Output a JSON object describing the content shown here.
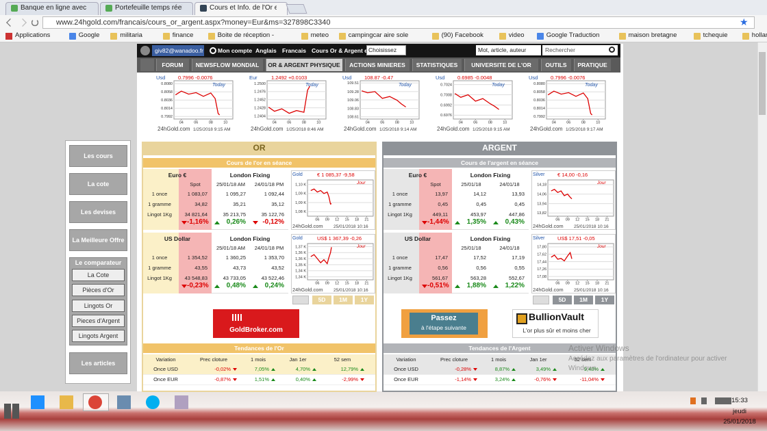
{
  "browser": {
    "tabs": [
      "Banque en ligne avec Fo",
      "Portefeuille temps réel -",
      "Cours et Info. de l'Or et l"
    ],
    "url": "www.24hgold.com/francais/cours_or_argent.aspx?money=Eur&ms=327898C3340",
    "bookmarks": [
      "Applications",
      "Google",
      "militaria",
      "finance",
      "Boite de réception -",
      "meteo",
      "campingcar aire sole",
      "(90) Facebook",
      "video",
      "Google Traduction",
      "maison bretagne",
      "tchequie",
      "hollande"
    ]
  },
  "site": {
    "user": "giv82@wanadoo.fr",
    "account": "Mon compte",
    "languages": [
      "Anglais",
      "Francais"
    ],
    "currency_label": "Cours Or & Argent en",
    "currency_select": "Choisissez",
    "search_placeholder": "Mot, article, auteur",
    "search_button": "Rechercher",
    "nav": [
      "FORUM",
      "NEWSFLOW MONDIAL",
      "OR & ARGENT PHYSIQUE",
      "ACTIONS MINIERES",
      "STATISTIQUES",
      "UNIVERSITE DE L'OR",
      "OUTILS",
      "PRATIQUE"
    ],
    "active_nav": 2
  },
  "mini_charts": [
    {
      "currency": "Usd",
      "quote": "0.7996 -0.0076",
      "today": "Today",
      "ylim": [
        0.7985,
        0.8088
      ],
      "yticks": [
        {
          "value": 0.808,
          "label": "0.8080"
        },
        {
          "value": 0.8058,
          "label": "0.8058"
        },
        {
          "value": 0.8036,
          "label": "0.8036"
        },
        {
          "value": 0.8014,
          "label": "0.8014"
        },
        {
          "value": 0.7992,
          "label": "0.7992"
        }
      ],
      "xlim": [
        3,
        11
      ],
      "xticks": [
        {
          "value": 4,
          "label": "04"
        },
        {
          "value": 6,
          "label": "06"
        },
        {
          "value": 8,
          "label": "08"
        },
        {
          "value": 10,
          "label": "10"
        }
      ],
      "x": [
        3.2,
        4,
        5,
        6,
        7,
        8,
        8.6,
        9,
        9.2
      ],
      "values": [
        0.805,
        0.806,
        0.8052,
        0.8056,
        0.8046,
        0.8055,
        0.804,
        0.8,
        0.7996
      ],
      "site": "24hGold.com",
      "time": "1/25/2018 9:15 AM"
    },
    {
      "currency": "Eur",
      "quote": "1.2492 +0.0103",
      "today": "Today",
      "ylim": [
        1.2395,
        1.2508
      ],
      "yticks": [
        {
          "value": 1.25,
          "label": "1.2500"
        },
        {
          "value": 1.2476,
          "label": "1.2476"
        },
        {
          "value": 1.2452,
          "label": "1.2452"
        },
        {
          "value": 1.2428,
          "label": "1.2428"
        },
        {
          "value": 1.2404,
          "label": "1.2404"
        }
      ],
      "xlim": [
        3,
        11
      ],
      "xticks": [
        {
          "value": 4,
          "label": "04"
        },
        {
          "value": 6,
          "label": "06"
        },
        {
          "value": 8,
          "label": "08"
        },
        {
          "value": 10,
          "label": "10"
        }
      ],
      "x": [
        3.2,
        4,
        5,
        6,
        7,
        8,
        8.5,
        8.8
      ],
      "values": [
        1.243,
        1.2418,
        1.2425,
        1.2412,
        1.242,
        1.2415,
        1.248,
        1.2492
      ],
      "site": "24hGold.com",
      "time": "1/25/2018 8:46 AM"
    },
    {
      "currency": "Usd",
      "quote": "108.87 -0.47",
      "today": "Today",
      "ylim": [
        108.55,
        109.57
      ],
      "yticks": [
        {
          "value": 109.51,
          "label": "109.51"
        },
        {
          "value": 109.28,
          "label": "109.28"
        },
        {
          "value": 109.06,
          "label": "109.06"
        },
        {
          "value": 108.83,
          "label": "108.83"
        },
        {
          "value": 108.61,
          "label": "108.61"
        }
      ],
      "xlim": [
        3,
        11
      ],
      "xticks": [
        {
          "value": 4,
          "label": "04"
        },
        {
          "value": 6,
          "label": "06"
        },
        {
          "value": 8,
          "label": "08"
        },
        {
          "value": 10,
          "label": "10"
        }
      ],
      "x": [
        3.2,
        4,
        5,
        6,
        7,
        8,
        8.6,
        9.2
      ],
      "values": [
        109.3,
        109.25,
        109.28,
        109.1,
        109.15,
        109.05,
        108.95,
        108.87
      ],
      "site": "24hGold.com",
      "time": "1/25/2018 9:14 AM"
    },
    {
      "currency": "Usd",
      "quote": "0.6985 -0.0048",
      "today": "Today",
      "ylim": [
        0.697,
        0.703
      ],
      "yticks": [
        {
          "value": 0.7024,
          "label": "0.7024"
        },
        {
          "value": 0.7008,
          "label": "0.7008"
        },
        {
          "value": 0.6992,
          "label": "0.6992"
        },
        {
          "value": 0.6976,
          "label": "0.6976"
        }
      ],
      "xlim": [
        3,
        11
      ],
      "xticks": [
        {
          "value": 4,
          "label": "04"
        },
        {
          "value": 6,
          "label": "06"
        },
        {
          "value": 8,
          "label": "08"
        },
        {
          "value": 10,
          "label": "10"
        }
      ],
      "x": [
        3.2,
        4,
        5,
        6,
        7,
        8,
        8.6,
        9.2
      ],
      "values": [
        0.701,
        0.7004,
        0.7008,
        0.6998,
        0.7002,
        0.6994,
        0.699,
        0.6985
      ],
      "site": "24hGold.com",
      "time": "1/25/2018 9:15 AM"
    },
    {
      "currency": "Usd",
      "quote": "0.7996 -0.0076",
      "today": "Today",
      "ylim": [
        0.7985,
        0.8088
      ],
      "yticks": [
        {
          "value": 0.808,
          "label": "0.8080"
        },
        {
          "value": 0.8058,
          "label": "0.8058"
        },
        {
          "value": 0.8036,
          "label": "0.8036"
        },
        {
          "value": 0.8014,
          "label": "0.8014"
        },
        {
          "value": 0.7992,
          "label": "0.7992"
        }
      ],
      "xlim": [
        3,
        11
      ],
      "xticks": [
        {
          "value": 4,
          "label": "04"
        },
        {
          "value": 6,
          "label": "06"
        },
        {
          "value": 8,
          "label": "08"
        },
        {
          "value": 10,
          "label": "10"
        }
      ],
      "x": [
        3.2,
        4,
        5,
        6,
        7,
        8,
        8.6,
        9,
        9.2
      ],
      "values": [
        0.805,
        0.806,
        0.8052,
        0.8056,
        0.8046,
        0.8055,
        0.804,
        0.8,
        0.7996
      ],
      "site": "24hGold.com",
      "time": "1/25/2018 9:17 AM"
    }
  ],
  "sidebar": {
    "buttons": [
      "Les cours",
      "La cote",
      "Les devises",
      "La Meilleure Offre"
    ],
    "comparator": {
      "title": "Le comparateur",
      "items": [
        "La Cote",
        "Pièces d'Or",
        "Lingots Or",
        "Pieces d'Argent",
        "Lingots Argent"
      ]
    },
    "articles": "Les articles"
  },
  "panels": [
    {
      "title": "OR",
      "subtitle": "Cours de l'or en séance",
      "blocks": [
        {
          "currency": "Euro €",
          "fixing": "London Fixing",
          "cols": [
            "Spot",
            "25/01/18 AM",
            "24/01/18 PM"
          ],
          "rows": [
            [
              "1 once",
              "1 083,07",
              "1 095,27",
              "1 092,44"
            ],
            [
              "1 gramme",
              "34,82",
              "35,21",
              "35,12"
            ],
            [
              "Lingot 1Kg",
              "34 821,64",
              "35 213,75",
              "35 122,76"
            ]
          ],
          "changes": [
            "-1,16%",
            "0,26%",
            "-0,12%"
          ],
          "chart": {
            "label": "Gold",
            "quote": "€ 1 085,37 -9,58",
            "period": "Jour",
            "ylim": [
              1077,
              1101
            ],
            "yticks": [
              {
                "value": 1098,
                "label": "1,10 K"
              },
              {
                "value": 1092,
                "label": "1,09 K"
              },
              {
                "value": 1086,
                "label": "1,09 K"
              },
              {
                "value": 1080,
                "label": "1,08 K"
              }
            ],
            "xlim": [
              3,
              23
            ],
            "xticks": [
              {
                "value": 6,
                "label": "06"
              },
              {
                "value": 9,
                "label": "09"
              },
              12,
              15,
              18,
              21
            ],
            "x": [
              4,
              5,
              6,
              7,
              8,
              9,
              9.5,
              10,
              10.3
            ],
            "values": [
              1094,
              1095,
              1093,
              1094,
              1092,
              1093,
              1090,
              1085,
              1085.37
            ],
            "site": "24hGold.com",
            "time": "25/01/2018 10:16"
          }
        },
        {
          "currency": "US Dollar",
          "fixing": "London Fixing",
          "cols": [
            null,
            "25/01/18 AM",
            "24/01/18 PM"
          ],
          "rows": [
            [
              "1 once",
              "1 354,52",
              "1 360,25",
              "1 353,70"
            ],
            [
              "1 gramme",
              "43,55",
              "43,73",
              "43,52"
            ],
            [
              "Lingot 1Kg",
              "43 548,83",
              "43 733,05",
              "43 522,46"
            ]
          ],
          "changes": [
            "-0,23%",
            "0,48%",
            "0,24%"
          ],
          "chart": {
            "label": "Gold",
            "quote": "US$ 1 367,39 -0,26",
            "period": "Jour",
            "ylim": [
              1335,
              1371
            ],
            "yticks": [
              {
                "value": 1368,
                "label": "1,37 K"
              },
              {
                "value": 1362,
                "label": "1,36 K"
              },
              {
                "value": 1356,
                "label": "1,36 K"
              },
              {
                "value": 1350,
                "label": "1,35 K"
              },
              {
                "value": 1344,
                "label": "1,34 K"
              },
              {
                "value": 1338,
                "label": "1,34 K"
              }
            ],
            "xlim": [
              3,
              23
            ],
            "xticks": [
              {
                "value": 6,
                "label": "06"
              },
              {
                "value": 9,
                "label": "09"
              },
              12,
              15,
              18,
              21
            ],
            "x": [
              4,
              5,
              6,
              7,
              8,
              9,
              9.5,
              10,
              10.3
            ],
            "values": [
              1358,
              1360,
              1356,
              1352,
              1355,
              1351,
              1357,
              1362,
              1367.39
            ],
            "site": "24hGold.com",
            "time": "25/01/2018 10:16"
          }
        }
      ],
      "periods": [
        "5D",
        "1M",
        "1Y"
      ],
      "trends": {
        "title": "Tendances de l'Or",
        "headers": [
          "Variation",
          "Prec cloture",
          "1 mois",
          "Jan 1er",
          "52 sem"
        ],
        "rows": [
          [
            "Once USD",
            "-0,02%",
            "7,05%",
            "4,70%",
            "12,79%"
          ],
          [
            "Once EUR",
            "-0,87%",
            "1,51%",
            "0,40%",
            "-2,99%"
          ]
        ]
      }
    },
    {
      "title": "ARGENT",
      "subtitle": "Cours de l'argent en séance",
      "blocks": [
        {
          "currency": "Euro €",
          "fixing": "London Fixing",
          "cols": [
            "Spot",
            "25/01/18",
            "24/01/18"
          ],
          "rows": [
            [
              "1 once",
              "13,97",
              "14,12",
              "13,93"
            ],
            [
              "1 gramme",
              "0,45",
              "0,45",
              "0,45"
            ],
            [
              "Lingot 1Kg",
              "449,11",
              "453,97",
              "447,86"
            ]
          ],
          "changes": [
            "-1,44%",
            "1,35%",
            "0,43%"
          ],
          "chart": {
            "label": "Silver",
            "quote": "€ 14,00 -0,16",
            "period": "Jour",
            "ylim": [
              13.78,
              14.24
            ],
            "yticks": [
              {
                "value": 14.18,
                "label": "14,18"
              },
              {
                "value": 14.06,
                "label": "14,06"
              },
              {
                "value": 13.94,
                "label": "13,94"
              },
              {
                "value": 13.82,
                "label": "13,82"
              }
            ],
            "xlim": [
              3,
              23
            ],
            "xticks": [
              {
                "value": 6,
                "label": "06"
              },
              {
                "value": 9,
                "label": "09"
              },
              12,
              15,
              18,
              21
            ],
            "x": [
              4,
              5,
              6,
              7,
              8,
              9,
              9.8,
              10.3
            ],
            "values": [
              14.1,
              14.12,
              14.08,
              14.1,
              14.04,
              14.06,
              14.02,
              14.0
            ],
            "site": "24hGold.com",
            "time": "25/01/2018 10:16"
          }
        },
        {
          "currency": "US Dollar",
          "fixing": "London Fixing",
          "cols": [
            null,
            "25/01/18",
            "24/01/18"
          ],
          "rows": [
            [
              "1 once",
              "17,47",
              "17,52",
              "17,19"
            ],
            [
              "1 gramme",
              "0,56",
              "0,56",
              "0,55"
            ],
            [
              "Lingot 1Kg",
              "561,67",
              "563,28",
              "552,67"
            ]
          ],
          "changes": [
            "-0,51%",
            "1,88%",
            "1,22%"
          ],
          "chart": {
            "label": "Silver",
            "quote": "US$ 17,51 -0,05",
            "period": "Jour",
            "ylim": [
              17.0,
              17.88
            ],
            "yticks": [
              {
                "value": 17.8,
                "label": "17,80"
              },
              {
                "value": 17.62,
                "label": "17,62"
              },
              {
                "value": 17.44,
                "label": "17,44"
              },
              {
                "value": 17.26,
                "label": "17,26"
              },
              {
                "value": 17.08,
                "label": "17,08"
              }
            ],
            "xlim": [
              3,
              23
            ],
            "xticks": [
              {
                "value": 6,
                "label": "06"
              },
              {
                "value": 9,
                "label": "09"
              },
              12,
              15,
              18,
              21
            ],
            "x": [
              4,
              5,
              6,
              7,
              8,
              9,
              9.8,
              10.3
            ],
            "values": [
              17.55,
              17.6,
              17.5,
              17.52,
              17.46,
              17.58,
              17.66,
              17.51
            ],
            "site": "24hGold.com",
            "time": "25/01/2018 10:16"
          }
        }
      ],
      "periods": [
        "5D",
        "1M",
        "1Y"
      ],
      "trends": {
        "title": "Tendances de l'Argent",
        "headers": [
          "Variation",
          "Prec cloture",
          "1 mois",
          "Jan 1er",
          "52 sem"
        ],
        "rows": [
          [
            "Once USD",
            "-0,28%",
            "8,87%",
            "3,49%",
            "9,43%"
          ],
          [
            "Once EUR",
            "-1,14%",
            "3,24%",
            "-0,76%",
            "-11,04%"
          ]
        ]
      }
    }
  ],
  "ads": {
    "goldbroker": "GoldBroker.com",
    "step": [
      "Passez",
      "à l'étape suivante"
    ],
    "bullion": "BullionVault",
    "bullion_tagline": "L'or plus sûr et moins cher"
  },
  "watermark": [
    "Activer Windows",
    "Accédez aux paramètres de l'ordinateur pour activer",
    "Windows."
  ],
  "taskbar": {
    "time": "15:33",
    "day": "jeudi",
    "date": "25/01/2018"
  }
}
